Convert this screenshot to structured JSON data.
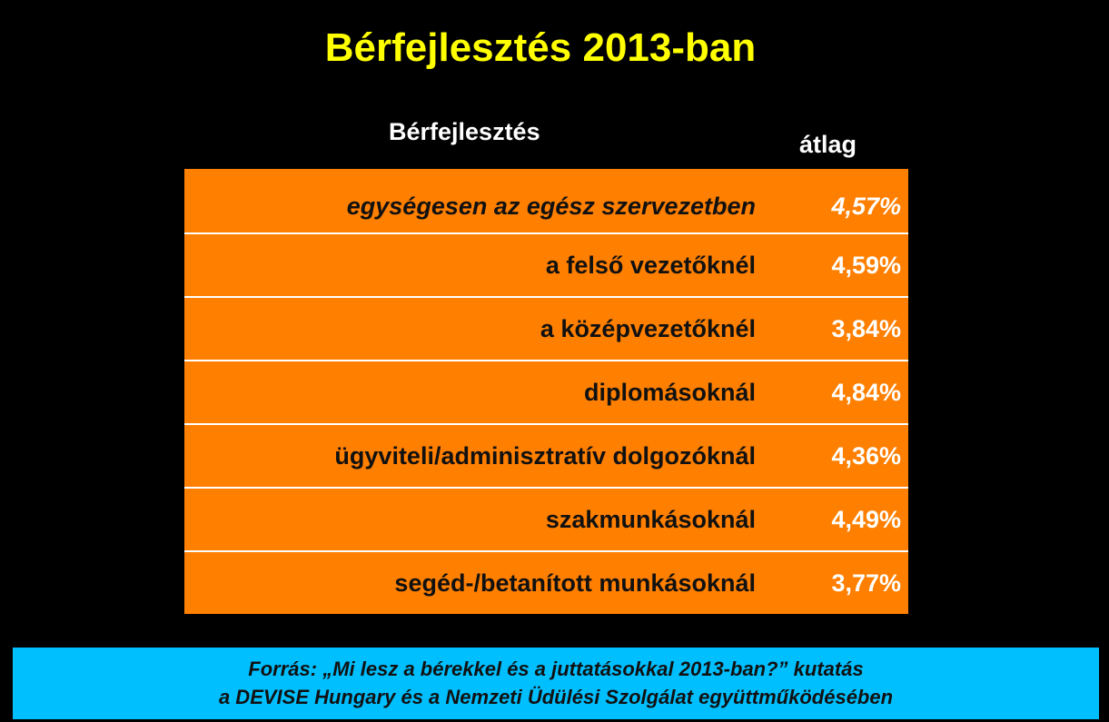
{
  "header": {
    "title": "Bérfejlesztés 2013-ban"
  },
  "table": {
    "columns": [
      "Bérfejlesztés",
      "átlag"
    ],
    "rows": [
      [
        "egységesen az egész szervezetben",
        "4,57%"
      ],
      [
        "a felső vezetőknél",
        "4,59%"
      ],
      [
        "a középvezetőknél",
        "3,84%"
      ],
      [
        "diplomásoknál",
        "4,84%"
      ],
      [
        "ügyviteli/adminisztratív dolgozóknál",
        "4,36%"
      ],
      [
        "szakmunkásoknál",
        "4,49%"
      ],
      [
        "segéd-/betanított munkásoknál",
        "3,77%"
      ]
    ]
  },
  "source": {
    "lines": [
      "Forrás: „Mi lesz a bérekkel és a juttatásokkal 2013-ban?” kutatás",
      "a DEVISE Hungary és a Nemzeti Üdülési Szolgálat együttműködésében"
    ]
  }
}
